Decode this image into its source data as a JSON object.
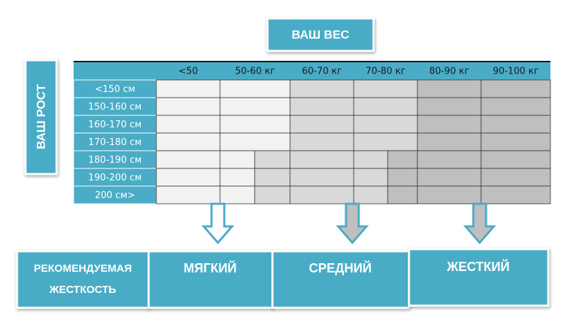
{
  "header": {
    "title": "ВАШ ВЕС"
  },
  "side_label": "ВАШ РОСТ",
  "table": {
    "columns": [
      "<50",
      "50-60 кг",
      "60-70 кг",
      "70-80 кг",
      "80-90 кг",
      "90-100 кг"
    ],
    "rows": [
      "<150 см",
      "150-160 см",
      "160-170 см",
      "170-180 см",
      "180-190 см",
      "190-200 см",
      "200 см>"
    ]
  },
  "recommendation": {
    "label": [
      "РЕКОМЕНДУЕМАЯ",
      "ЖЕСТКОСТЬ"
    ],
    "levels": [
      "МЯГКИЙ",
      "СРЕДНИЙ",
      "ЖЕСТКИЙ"
    ]
  }
}
